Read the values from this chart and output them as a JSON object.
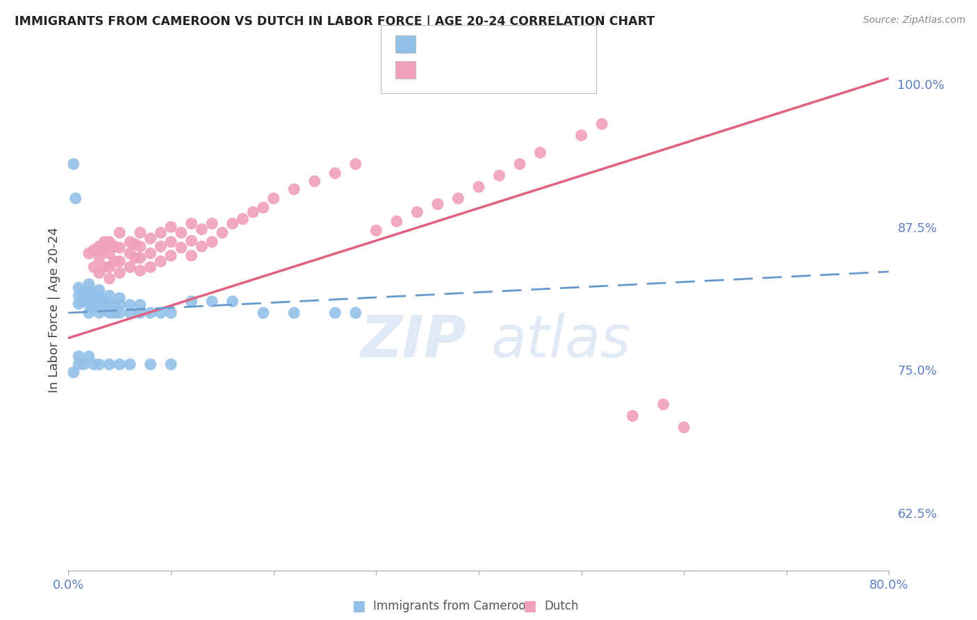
{
  "title": "IMMIGRANTS FROM CAMEROON VS DUTCH IN LABOR FORCE | AGE 20-24 CORRELATION CHART",
  "source": "Source: ZipAtlas.com",
  "ylabel_left": "In Labor Force | Age 20-24",
  "x_min": 0.0,
  "x_max": 0.8,
  "y_min": 0.575,
  "y_max": 1.03,
  "y_ticks": [
    0.625,
    0.75,
    0.875,
    1.0
  ],
  "y_tick_labels": [
    "62.5%",
    "75.0%",
    "87.5%",
    "100.0%"
  ],
  "color_cameroon": "#92C0E8",
  "color_dutch": "#F0A0B8",
  "color_cameroon_line": "#6699CC",
  "color_dutch_line": "#E06080",
  "color_axis_labels": "#5B7FC4",
  "background_color": "#FFFFFF",
  "grid_color": "#CCCCCC",
  "cam_line_x0": 0.0,
  "cam_line_y0": 0.8,
  "cam_line_x1": 0.8,
  "cam_line_y1": 0.836,
  "dutch_line_x0": 0.0,
  "dutch_line_y0": 0.778,
  "dutch_line_x1": 0.8,
  "dutch_line_y1": 1.005,
  "cameroon_x": [
    0.005,
    0.007,
    0.01,
    0.01,
    0.01,
    0.015,
    0.015,
    0.02,
    0.02,
    0.02,
    0.02,
    0.02,
    0.025,
    0.025,
    0.025,
    0.03,
    0.03,
    0.03,
    0.03,
    0.03,
    0.035,
    0.035,
    0.04,
    0.04,
    0.04,
    0.045,
    0.045,
    0.05,
    0.05,
    0.05,
    0.06,
    0.06,
    0.07,
    0.07,
    0.08,
    0.09,
    0.1,
    0.12,
    0.14,
    0.16,
    0.19,
    0.22,
    0.26,
    0.28,
    0.01,
    0.005,
    0.01,
    0.015,
    0.02,
    0.025,
    0.03,
    0.04,
    0.05,
    0.06,
    0.08,
    0.1
  ],
  "cameroon_y": [
    0.93,
    0.9,
    0.808,
    0.815,
    0.822,
    0.81,
    0.818,
    0.8,
    0.808,
    0.815,
    0.82,
    0.825,
    0.805,
    0.812,
    0.818,
    0.8,
    0.805,
    0.81,
    0.815,
    0.82,
    0.803,
    0.81,
    0.8,
    0.808,
    0.815,
    0.8,
    0.807,
    0.8,
    0.807,
    0.813,
    0.8,
    0.807,
    0.8,
    0.807,
    0.8,
    0.8,
    0.8,
    0.81,
    0.81,
    0.81,
    0.8,
    0.8,
    0.8,
    0.8,
    0.755,
    0.748,
    0.762,
    0.755,
    0.762,
    0.755,
    0.755,
    0.755,
    0.755,
    0.755,
    0.755,
    0.755
  ],
  "dutch_x": [
    0.02,
    0.025,
    0.025,
    0.03,
    0.03,
    0.03,
    0.035,
    0.035,
    0.035,
    0.04,
    0.04,
    0.04,
    0.04,
    0.045,
    0.045,
    0.05,
    0.05,
    0.05,
    0.05,
    0.06,
    0.06,
    0.06,
    0.065,
    0.065,
    0.07,
    0.07,
    0.07,
    0.07,
    0.08,
    0.08,
    0.08,
    0.09,
    0.09,
    0.09,
    0.1,
    0.1,
    0.1,
    0.11,
    0.11,
    0.12,
    0.12,
    0.12,
    0.13,
    0.13,
    0.14,
    0.14,
    0.15,
    0.16,
    0.17,
    0.18,
    0.19,
    0.2,
    0.22,
    0.24,
    0.26,
    0.28,
    0.3,
    0.32,
    0.34,
    0.36,
    0.38,
    0.4,
    0.42,
    0.44,
    0.46,
    0.5,
    0.52,
    0.6,
    0.55,
    0.58
  ],
  "dutch_y": [
    0.852,
    0.84,
    0.855,
    0.835,
    0.848,
    0.858,
    0.84,
    0.855,
    0.862,
    0.83,
    0.84,
    0.852,
    0.862,
    0.845,
    0.858,
    0.835,
    0.845,
    0.857,
    0.87,
    0.84,
    0.852,
    0.862,
    0.848,
    0.86,
    0.837,
    0.848,
    0.858,
    0.87,
    0.84,
    0.852,
    0.865,
    0.845,
    0.858,
    0.87,
    0.85,
    0.862,
    0.875,
    0.857,
    0.87,
    0.85,
    0.863,
    0.878,
    0.858,
    0.873,
    0.862,
    0.878,
    0.87,
    0.878,
    0.882,
    0.888,
    0.892,
    0.9,
    0.908,
    0.915,
    0.922,
    0.93,
    0.872,
    0.88,
    0.888,
    0.895,
    0.9,
    0.91,
    0.92,
    0.93,
    0.94,
    0.955,
    0.965,
    0.7,
    0.71,
    0.72
  ]
}
